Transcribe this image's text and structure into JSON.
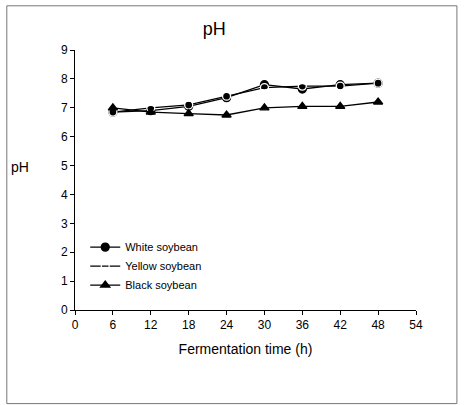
{
  "chart_data": {
    "type": "line",
    "title": "pH",
    "xlabel": "Fermentation time (h)",
    "ylabel": "pH",
    "x": [
      6,
      12,
      18,
      24,
      30,
      36,
      42,
      48
    ],
    "series": [
      {
        "name": "White soybean",
        "color": "#000000",
        "marker": "circle",
        "line_style": "solid",
        "values": [
          6.85,
          6.9,
          7.05,
          7.35,
          7.8,
          7.65,
          7.8,
          7.85
        ]
      },
      {
        "name": "Yellow soybean",
        "color": "#000000",
        "marker": "circle-open",
        "line_style": "solid",
        "values": [
          6.85,
          7.0,
          7.1,
          7.4,
          7.7,
          7.75,
          7.75,
          7.85
        ]
      },
      {
        "name": "Black soybean",
        "color": "#000000",
        "marker": "triangle",
        "line_style": "solid",
        "values": [
          7.0,
          6.85,
          6.8,
          6.75,
          7.0,
          7.05,
          7.05,
          7.2
        ]
      }
    ],
    "xlim": [
      0,
      54
    ],
    "xticks": [
      0,
      6,
      12,
      18,
      24,
      30,
      36,
      42,
      48,
      54
    ],
    "ylim": [
      0,
      9
    ],
    "yticks": [
      0,
      1,
      2,
      3,
      4,
      5,
      6,
      7,
      8,
      9
    ],
    "grid": false,
    "legend": "lower left"
  }
}
